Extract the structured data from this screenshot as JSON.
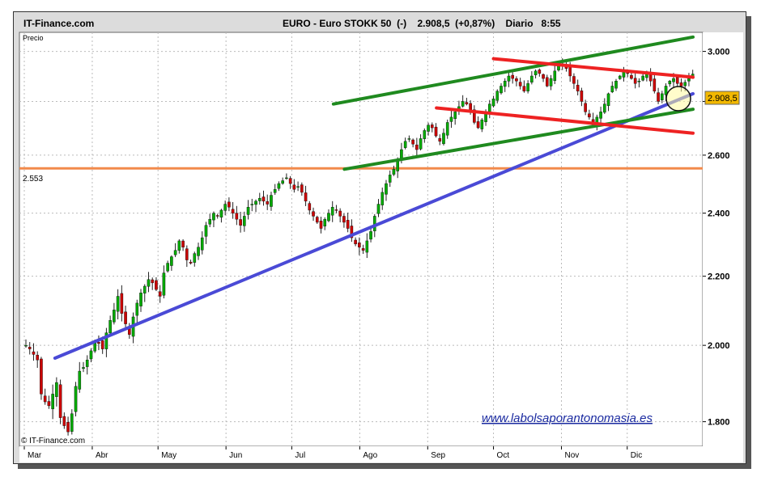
{
  "header": {
    "brand": "IT-Finance.com",
    "title": "EURO - Euro STOKK 50  (-)    2.908,5  (+0,87%)    Diario   8:55"
  },
  "chart_data": {
    "type": "candlestick",
    "panel_label": "Precio",
    "y_ticks": [
      "3.000",
      "2.800",
      "2.600",
      "2.400",
      "2.200",
      "2.000",
      "1.800"
    ],
    "y_tick_values": [
      3000,
      2800,
      2600,
      2400,
      2200,
      2000,
      1800
    ],
    "y_scale": "log",
    "ylim": [
      1740,
      3080
    ],
    "x_ticks": [
      "Mar",
      "Abr",
      "May",
      "Jun",
      "Jul",
      "Ago",
      "Sep",
      "Oct",
      "Nov",
      "Dic"
    ],
    "last_price_label": "2.908,5",
    "support_label": "2.553",
    "support_level": 2553,
    "close_series": [
      2000,
      1990,
      1975,
      1960,
      1870,
      1850,
      1840,
      1870,
      1900,
      1810,
      1790,
      1775,
      1820,
      1890,
      1930,
      1940,
      1960,
      1985,
      2010,
      2005,
      1990,
      2035,
      2070,
      2100,
      2140,
      2090,
      2060,
      2030,
      2080,
      2120,
      2150,
      2170,
      2190,
      2180,
      2160,
      2140,
      2210,
      2240,
      2260,
      2280,
      2310,
      2290,
      2250,
      2240,
      2270,
      2290,
      2320,
      2360,
      2380,
      2400,
      2390,
      2410,
      2430,
      2420,
      2400,
      2380,
      2360,
      2390,
      2420,
      2430,
      2440,
      2450,
      2440,
      2430,
      2460,
      2480,
      2500,
      2510,
      2520,
      2500,
      2480,
      2490,
      2470,
      2440,
      2410,
      2390,
      2370,
      2350,
      2380,
      2400,
      2420,
      2410,
      2390,
      2370,
      2350,
      2320,
      2300,
      2290,
      2280,
      2310,
      2340,
      2390,
      2430,
      2470,
      2500,
      2530,
      2550,
      2580,
      2620,
      2650,
      2660,
      2640,
      2620,
      2660,
      2690,
      2710,
      2700,
      2670,
      2650,
      2680,
      2720,
      2740,
      2760,
      2780,
      2800,
      2790,
      2760,
      2720,
      2700,
      2730,
      2760,
      2790,
      2810,
      2840,
      2860,
      2880,
      2900,
      2890,
      2880,
      2860,
      2840,
      2870,
      2900,
      2920,
      2910,
      2890,
      2860,
      2890,
      2920,
      2940,
      2950,
      2930,
      2900,
      2870,
      2840,
      2800,
      2760,
      2740,
      2720,
      2740,
      2760,
      2790,
      2830,
      2860,
      2880,
      2900,
      2920,
      2910,
      2890,
      2870,
      2880,
      2900,
      2910,
      2880,
      2840,
      2800,
      2830,
      2860,
      2880,
      2890,
      2870,
      2860,
      2875,
      2890,
      2908
    ],
    "trendlines": [
      {
        "color": "#4a4ad6",
        "from": [
          "2010-03-15",
          1965
        ],
        "to": [
          "2010-12-31",
          2830
        ]
      },
      {
        "color": "#1f8a1f",
        "from": [
          "2010-07-20",
          2790
        ],
        "to": [
          "2010-12-31",
          3060
        ]
      },
      {
        "color": "#1f8a1f",
        "from": [
          "2010-07-25",
          2550
        ],
        "to": [
          "2010-12-31",
          2770
        ]
      },
      {
        "color": "#ee2222",
        "from": [
          "2010-10-01",
          2970
        ],
        "to": [
          "2010-12-31",
          2895
        ]
      },
      {
        "color": "#ee2222",
        "from": [
          "2010-09-05",
          2775
        ],
        "to": [
          "2010-12-31",
          2680
        ]
      }
    ],
    "colors": {
      "up": "#00aa00",
      "down": "#cc0000",
      "wick": "#222222",
      "support": "#f28a4b",
      "last_price_bg": "#f2b800"
    }
  },
  "footer": {
    "copyright": "© IT-Finance.com",
    "watermark": "www.labolsaporantonomasia.es"
  }
}
